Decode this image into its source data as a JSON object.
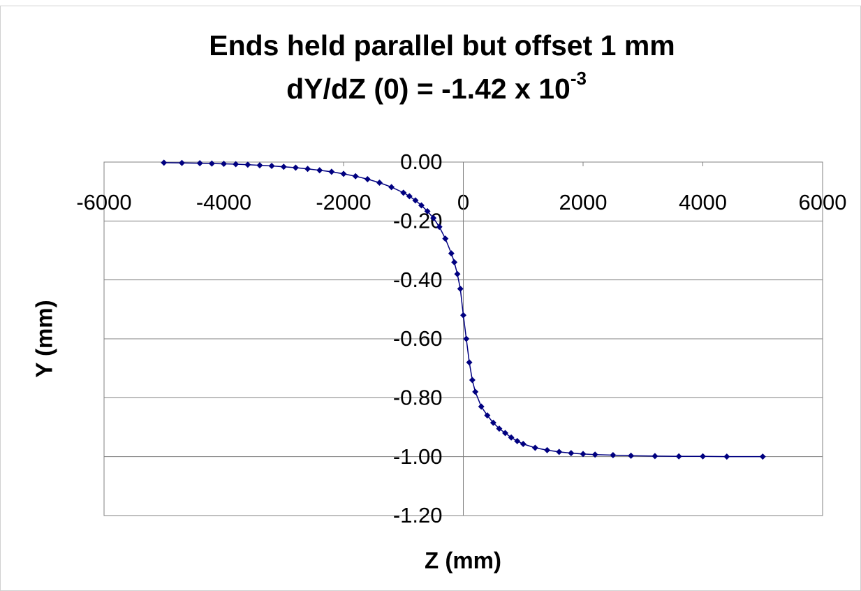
{
  "chart_data": {
    "type": "scatter",
    "title": "Ends held parallel but offset 1 mm",
    "subtitle": "dY/dZ (0) = -1.42 x 10",
    "subtitle_superscript": "-3",
    "xlabel": "Z (mm)",
    "ylabel": "Y (mm)",
    "xlim": [
      -6000,
      6000
    ],
    "xticks": [
      -6000,
      -4000,
      -2000,
      0,
      2000,
      4000,
      6000
    ],
    "ylim": [
      -1.2,
      0
    ],
    "yticks": [
      {
        "value": 0,
        "label": "0.00"
      },
      {
        "value": -0.2,
        "label": "-0.20"
      },
      {
        "value": -0.4,
        "label": "-0.40"
      },
      {
        "value": -0.6,
        "label": "-0.60"
      },
      {
        "value": -0.8,
        "label": "-0.80"
      },
      {
        "value": -1.0,
        "label": "-1.00"
      },
      {
        "value": -1.2,
        "label": "-1.20"
      }
    ],
    "grid": true,
    "series": [
      {
        "color": "#000080",
        "x": [
          -5000,
          -4700,
          -4400,
          -4200,
          -4000,
          -3800,
          -3600,
          -3400,
          -3200,
          -3000,
          -2800,
          -2600,
          -2400,
          -2200,
          -2000,
          -1800,
          -1600,
          -1400,
          -1200,
          -1000,
          -900,
          -800,
          -700,
          -600,
          -500,
          -400,
          -300,
          -200,
          -150,
          -100,
          -50,
          0,
          50,
          100,
          150,
          200,
          300,
          400,
          500,
          600,
          700,
          800,
          900,
          1000,
          1200,
          1400,
          1600,
          1800,
          2000,
          2200,
          2500,
          2800,
          3200,
          3600,
          4000,
          4400,
          5000
        ],
        "values": [
          -0.002,
          -0.003,
          -0.004,
          -0.005,
          -0.006,
          -0.007,
          -0.009,
          -0.011,
          -0.013,
          -0.016,
          -0.019,
          -0.023,
          -0.028,
          -0.033,
          -0.04,
          -0.048,
          -0.058,
          -0.07,
          -0.085,
          -0.104,
          -0.116,
          -0.13,
          -0.147,
          -0.167,
          -0.19,
          -0.22,
          -0.26,
          -0.31,
          -0.34,
          -0.38,
          -0.43,
          -0.52,
          -0.6,
          -0.68,
          -0.74,
          -0.78,
          -0.83,
          -0.86,
          -0.885,
          -0.905,
          -0.92,
          -0.935,
          -0.947,
          -0.957,
          -0.97,
          -0.978,
          -0.984,
          -0.988,
          -0.991,
          -0.993,
          -0.995,
          -0.997,
          -0.998,
          -0.999,
          -0.999,
          -1.0,
          -1.0
        ]
      }
    ]
  }
}
